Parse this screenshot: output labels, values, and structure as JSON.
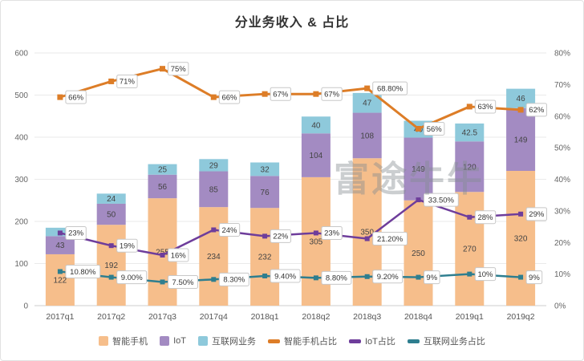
{
  "title": "分业务收入 & 占比",
  "watermark": "富途牛牛",
  "chart_data": {
    "type": "bar",
    "stacked": true,
    "overlay_type": "line",
    "grid": true,
    "legend_position": "bottom",
    "categories": [
      "2017q1",
      "2017q2",
      "2017q3",
      "2017q4",
      "2018q1",
      "2018q2",
      "2018q3",
      "2018q4",
      "2019q1",
      "2019q2"
    ],
    "left_axis": {
      "min": 0,
      "max": 600,
      "step": 100
    },
    "right_axis": {
      "min": 0,
      "max": 80,
      "step": 10,
      "suffix": "%"
    },
    "bar_series": [
      {
        "name": "智能手机",
        "color": "#F6BE8B",
        "values": [
          122,
          192,
          255,
          234,
          232,
          305,
          350,
          250,
          270,
          320
        ],
        "labels": [
          "122",
          "192",
          "255",
          "234",
          "232",
          "305",
          "350",
          "250",
          "270",
          "320"
        ]
      },
      {
        "name": "IoT",
        "color": "#A38BC2",
        "values": [
          43,
          50,
          56,
          85,
          76,
          104,
          108,
          149,
          120,
          149
        ],
        "labels": [
          "43",
          "50",
          "56",
          "85",
          "76",
          "104",
          "108",
          "149",
          "120",
          "149"
        ]
      },
      {
        "name": "互联网业务",
        "color": "#8EC9DB",
        "values": [
          20,
          24,
          25,
          29,
          32,
          40,
          47,
          40,
          42.5,
          46
        ],
        "labels": [
          "",
          "24",
          "25",
          "29",
          "32",
          "40",
          "47",
          "40",
          "42.5",
          "46"
        ]
      }
    ],
    "line_series": [
      {
        "name": "智能手机占比",
        "color": "#DD7D27",
        "width": 3,
        "values": [
          66,
          71,
          75,
          66,
          67,
          67,
          68.8,
          56,
          63,
          62
        ],
        "labels": [
          "66%",
          "71%",
          "75%",
          "66%",
          "67%",
          "67%",
          "68.80%",
          "56%",
          "63%",
          "62%"
        ]
      },
      {
        "name": "IoT占比",
        "color": "#6E3D9B",
        "width": 2.5,
        "values": [
          23,
          19,
          16,
          24,
          22,
          23,
          21.2,
          33.5,
          28,
          29
        ],
        "labels": [
          "23%",
          "19%",
          "16%",
          "24%",
          "22%",
          "23%",
          "21.20%",
          "33.50%",
          "28%",
          "29%"
        ]
      },
      {
        "name": "互联网业务占比",
        "color": "#2E7E8F",
        "width": 2.5,
        "values": [
          10.8,
          9,
          7.5,
          8.3,
          9.4,
          8.8,
          9.2,
          9,
          10,
          9
        ],
        "labels": [
          "10.80%",
          "9.00%",
          "7.50%",
          "8.30%",
          "9.40%",
          "8.80%",
          "9.20%",
          "9%",
          "10%",
          "9%"
        ]
      }
    ]
  }
}
